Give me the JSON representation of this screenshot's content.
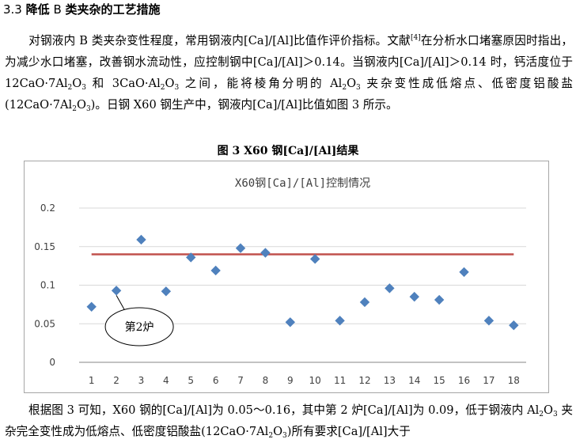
{
  "section": {
    "number": "3.3",
    "title_prefix": "降低",
    "title_letter": "B",
    "title_suffix": "类夹杂的工艺措施"
  },
  "para1": {
    "t1": "对钢液内 B 类夹杂变性程度，常用钢液内[Ca]/[Al]比值作评价指标。文献",
    "ref": "[4]",
    "t2": "在分析水口堵塞原因时指出，为减少水口堵塞，改善钢水流动性，应控制钢中[Ca]/[Al]＞0.14。当钢液内[Ca]/[Al]＞0.14 时，钙活度位于 12CaO·7Al",
    "s1": "2",
    "t3": "O",
    "s2": "3",
    "t4": " 和 3CaO·Al",
    "s3": "2",
    "t5": "O",
    "s4": "3",
    "t6": " 之间，能将棱角分明的 Al",
    "s5": "2",
    "t7": "O",
    "s6": "3",
    "t8": " 夹杂变性成低熔点、低密度铝酸盐(12CaO·7Al",
    "s7": "2",
    "t9": "O",
    "s8": "3",
    "t10": ")。日钢 X60 钢生产中，钢液内[Ca]/[Al]比值如图 3 所示。"
  },
  "figure_caption": "图 3 X60 钢[Ca]/[Al]结果",
  "chart_data": {
    "type": "scatter",
    "title": "X60钢[Ca]/[Al]控制情况",
    "x": [
      1,
      2,
      3,
      4,
      5,
      6,
      7,
      8,
      9,
      10,
      11,
      12,
      13,
      14,
      15,
      16,
      17,
      18
    ],
    "x_tick_labels": [
      "1",
      "2",
      "3",
      "4",
      "5",
      "6",
      "7",
      "8",
      "9",
      "10",
      "11",
      "12",
      "13",
      "14",
      "15",
      "16",
      "17",
      "18"
    ],
    "y": [
      0.072,
      0.093,
      0.159,
      0.092,
      0.136,
      0.119,
      0.148,
      0.142,
      0.052,
      0.134,
      0.054,
      0.078,
      0.096,
      0.085,
      0.081,
      0.117,
      0.054,
      0.048
    ],
    "ylim": [
      0,
      0.2
    ],
    "y_ticks": [
      0,
      0.05,
      0.1,
      0.15,
      0.2
    ],
    "y_tick_labels": [
      "0",
      "0.05",
      "0.1",
      "0.15",
      "0.2"
    ],
    "reference_line": {
      "y": 0.14,
      "color": "#c0504d"
    },
    "marker_color": "#4f81bd",
    "grid": true,
    "legend": "none",
    "annotation": {
      "text": "第2炉",
      "target_x": 2
    }
  },
  "para2": {
    "line1": "根据图 3 可知，X60 钢的[Ca]/[Al]为 0.05～0.16，其中第 2 炉[Ca]/[Al]为 0.09，低于钢",
    "l2a": "液内 Al",
    "l2s1": "2",
    "l2b": "O",
    "l2s2": "3",
    "l2c": " 夹杂完全变性成为低熔点、低密度铝酸盐(12CaO·7Al",
    "l2s3": "2",
    "l2d": "O",
    "l2s4": "3",
    "l2e": ")所有要求[Ca]/[Al]大于"
  }
}
